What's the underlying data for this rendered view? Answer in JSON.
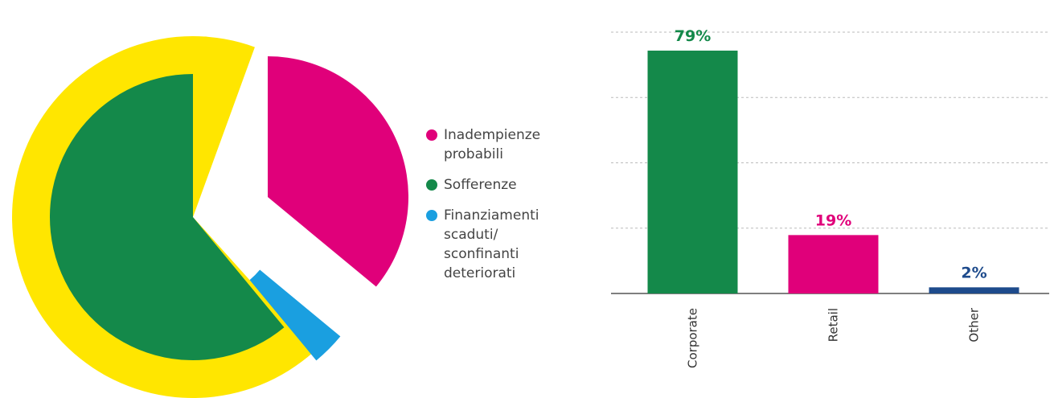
{
  "chart_data": [
    {
      "type": "pie",
      "categories": [
        "Inadempienze probabili",
        "Finanziamenti scaduti/ sconfinanti deteriorati",
        "Sofferenze"
      ],
      "values": [
        36,
        3,
        61
      ],
      "colors": [
        "#e0007a",
        "#1a9fe0",
        "#14894a"
      ],
      "legend_order": [
        0,
        2,
        1
      ]
    },
    {
      "type": "bar",
      "categories": [
        "Corporate",
        "Retail",
        "Other"
      ],
      "values": [
        79,
        19,
        2
      ],
      "value_labels": [
        "79%",
        "19%",
        "2%"
      ],
      "colors": [
        "#14894a",
        "#e0007a",
        "#1e4b8c"
      ],
      "ylim": [
        0,
        85
      ],
      "yticks": [
        0,
        21.25,
        42.5,
        63.75,
        85
      ],
      "grid": true
    }
  ]
}
